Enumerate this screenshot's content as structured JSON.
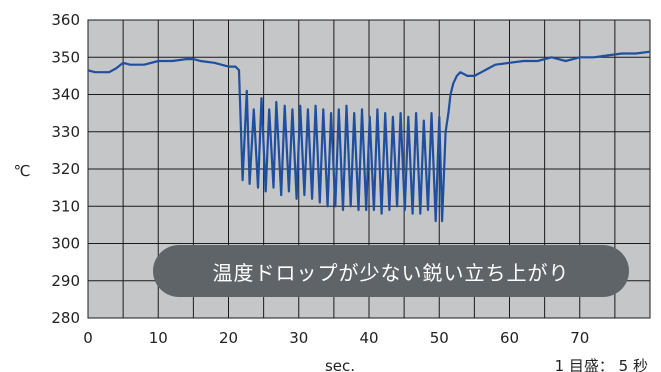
{
  "chart_data": {
    "type": "line",
    "title": "",
    "xlabel": "sec.",
    "ylabel": "℃",
    "xlim": [
      0,
      80
    ],
    "ylim": [
      280,
      360
    ],
    "xticks": [
      0,
      10,
      20,
      30,
      40,
      50,
      60,
      70
    ],
    "yticks": [
      280,
      290,
      300,
      310,
      320,
      330,
      340,
      350,
      360
    ],
    "grid": true,
    "gridlines_per_x_division": 2,
    "legend": "none",
    "colors": {
      "line": "#1f4f9e",
      "plot_bg": "#c4c6c8",
      "grid": "#1a1a1a"
    },
    "annotation": "温度ドロップが少ない鋭い立ち上がり",
    "scale_note": "1 目盛： 5 秒",
    "series": [
      {
        "x": [
          0,
          1,
          2,
          3,
          4,
          5,
          6,
          7,
          8,
          10,
          12,
          14,
          15,
          16,
          18,
          20,
          21,
          21.5,
          22.0,
          22.6,
          23.0,
          23.6,
          24.2,
          24.7,
          25.3,
          25.8,
          26.4,
          26.8,
          27.5,
          28.0,
          28.6,
          29.1,
          29.7,
          30.2,
          30.8,
          31.3,
          31.9,
          32.4,
          33.0,
          33.5,
          34.1,
          34.6,
          35.2,
          35.7,
          36.3,
          36.8,
          37.4,
          37.9,
          38.5,
          39.0,
          39.6,
          40.1,
          40.7,
          41.2,
          41.8,
          42.3,
          42.9,
          43.4,
          44.0,
          44.5,
          45.1,
          45.6,
          46.2,
          46.7,
          47.3,
          47.8,
          48.4,
          48.9,
          49.5,
          50.0,
          50.4,
          50.9,
          51.3,
          51.6,
          52.0,
          52.5,
          53,
          54,
          55,
          56,
          57,
          58,
          60,
          62,
          64,
          66,
          68,
          70,
          72,
          74,
          76,
          78,
          80
        ],
        "y": [
          346.5,
          346,
          346,
          346,
          347,
          348.5,
          348,
          348,
          348,
          349,
          349,
          349.5,
          349.5,
          349,
          348.5,
          347.5,
          347.5,
          346.5,
          317,
          341,
          316,
          336,
          315,
          339,
          314,
          336,
          315,
          338,
          313,
          337,
          314,
          336,
          312,
          337,
          313,
          336,
          312,
          337,
          311,
          336,
          310,
          335,
          310,
          336,
          309,
          337,
          310,
          335,
          309,
          336,
          309,
          334,
          309,
          336,
          308,
          335,
          309,
          334,
          310,
          335,
          309,
          334,
          308,
          335,
          308,
          333,
          309,
          335,
          306,
          334,
          306,
          330,
          335,
          340,
          343,
          345,
          346,
          345,
          345,
          346,
          347,
          348,
          348.5,
          349,
          349,
          350,
          349,
          350,
          350,
          350.5,
          351,
          351,
          351.5
        ]
      }
    ]
  }
}
